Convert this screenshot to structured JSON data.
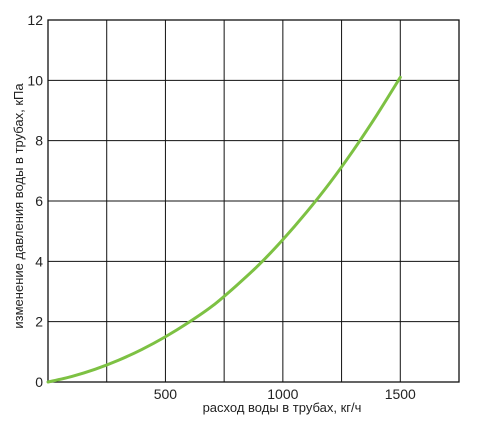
{
  "chart_data": {
    "type": "line",
    "xlabel": "расход воды в трубах, кг/ч",
    "ylabel": "изменение давления воды в трубах, кПа",
    "xlim": [
      0,
      1750
    ],
    "ylim": [
      0,
      12
    ],
    "x_ticks": [
      250,
      500,
      750,
      1000,
      1250,
      1500
    ],
    "x_tick_labels": [
      "",
      "500",
      "",
      "1000",
      "",
      "1500"
    ],
    "y_ticks": [
      0,
      2,
      4,
      6,
      8,
      10,
      12
    ],
    "y_tick_labels": [
      "0",
      "2",
      "4",
      "6",
      "8",
      "10",
      "12"
    ],
    "grid": true,
    "series": [
      {
        "color": "#7dc143",
        "x": [
          0,
          100,
          200,
          300,
          400,
          500,
          600,
          700,
          800,
          900,
          1000,
          1100,
          1200,
          1300,
          1400,
          1500
        ],
        "values": [
          0,
          0.18,
          0.42,
          0.72,
          1.08,
          1.5,
          1.98,
          2.52,
          3.18,
          3.9,
          4.72,
          5.62,
          6.6,
          7.68,
          8.85,
          10.1
        ]
      }
    ]
  }
}
